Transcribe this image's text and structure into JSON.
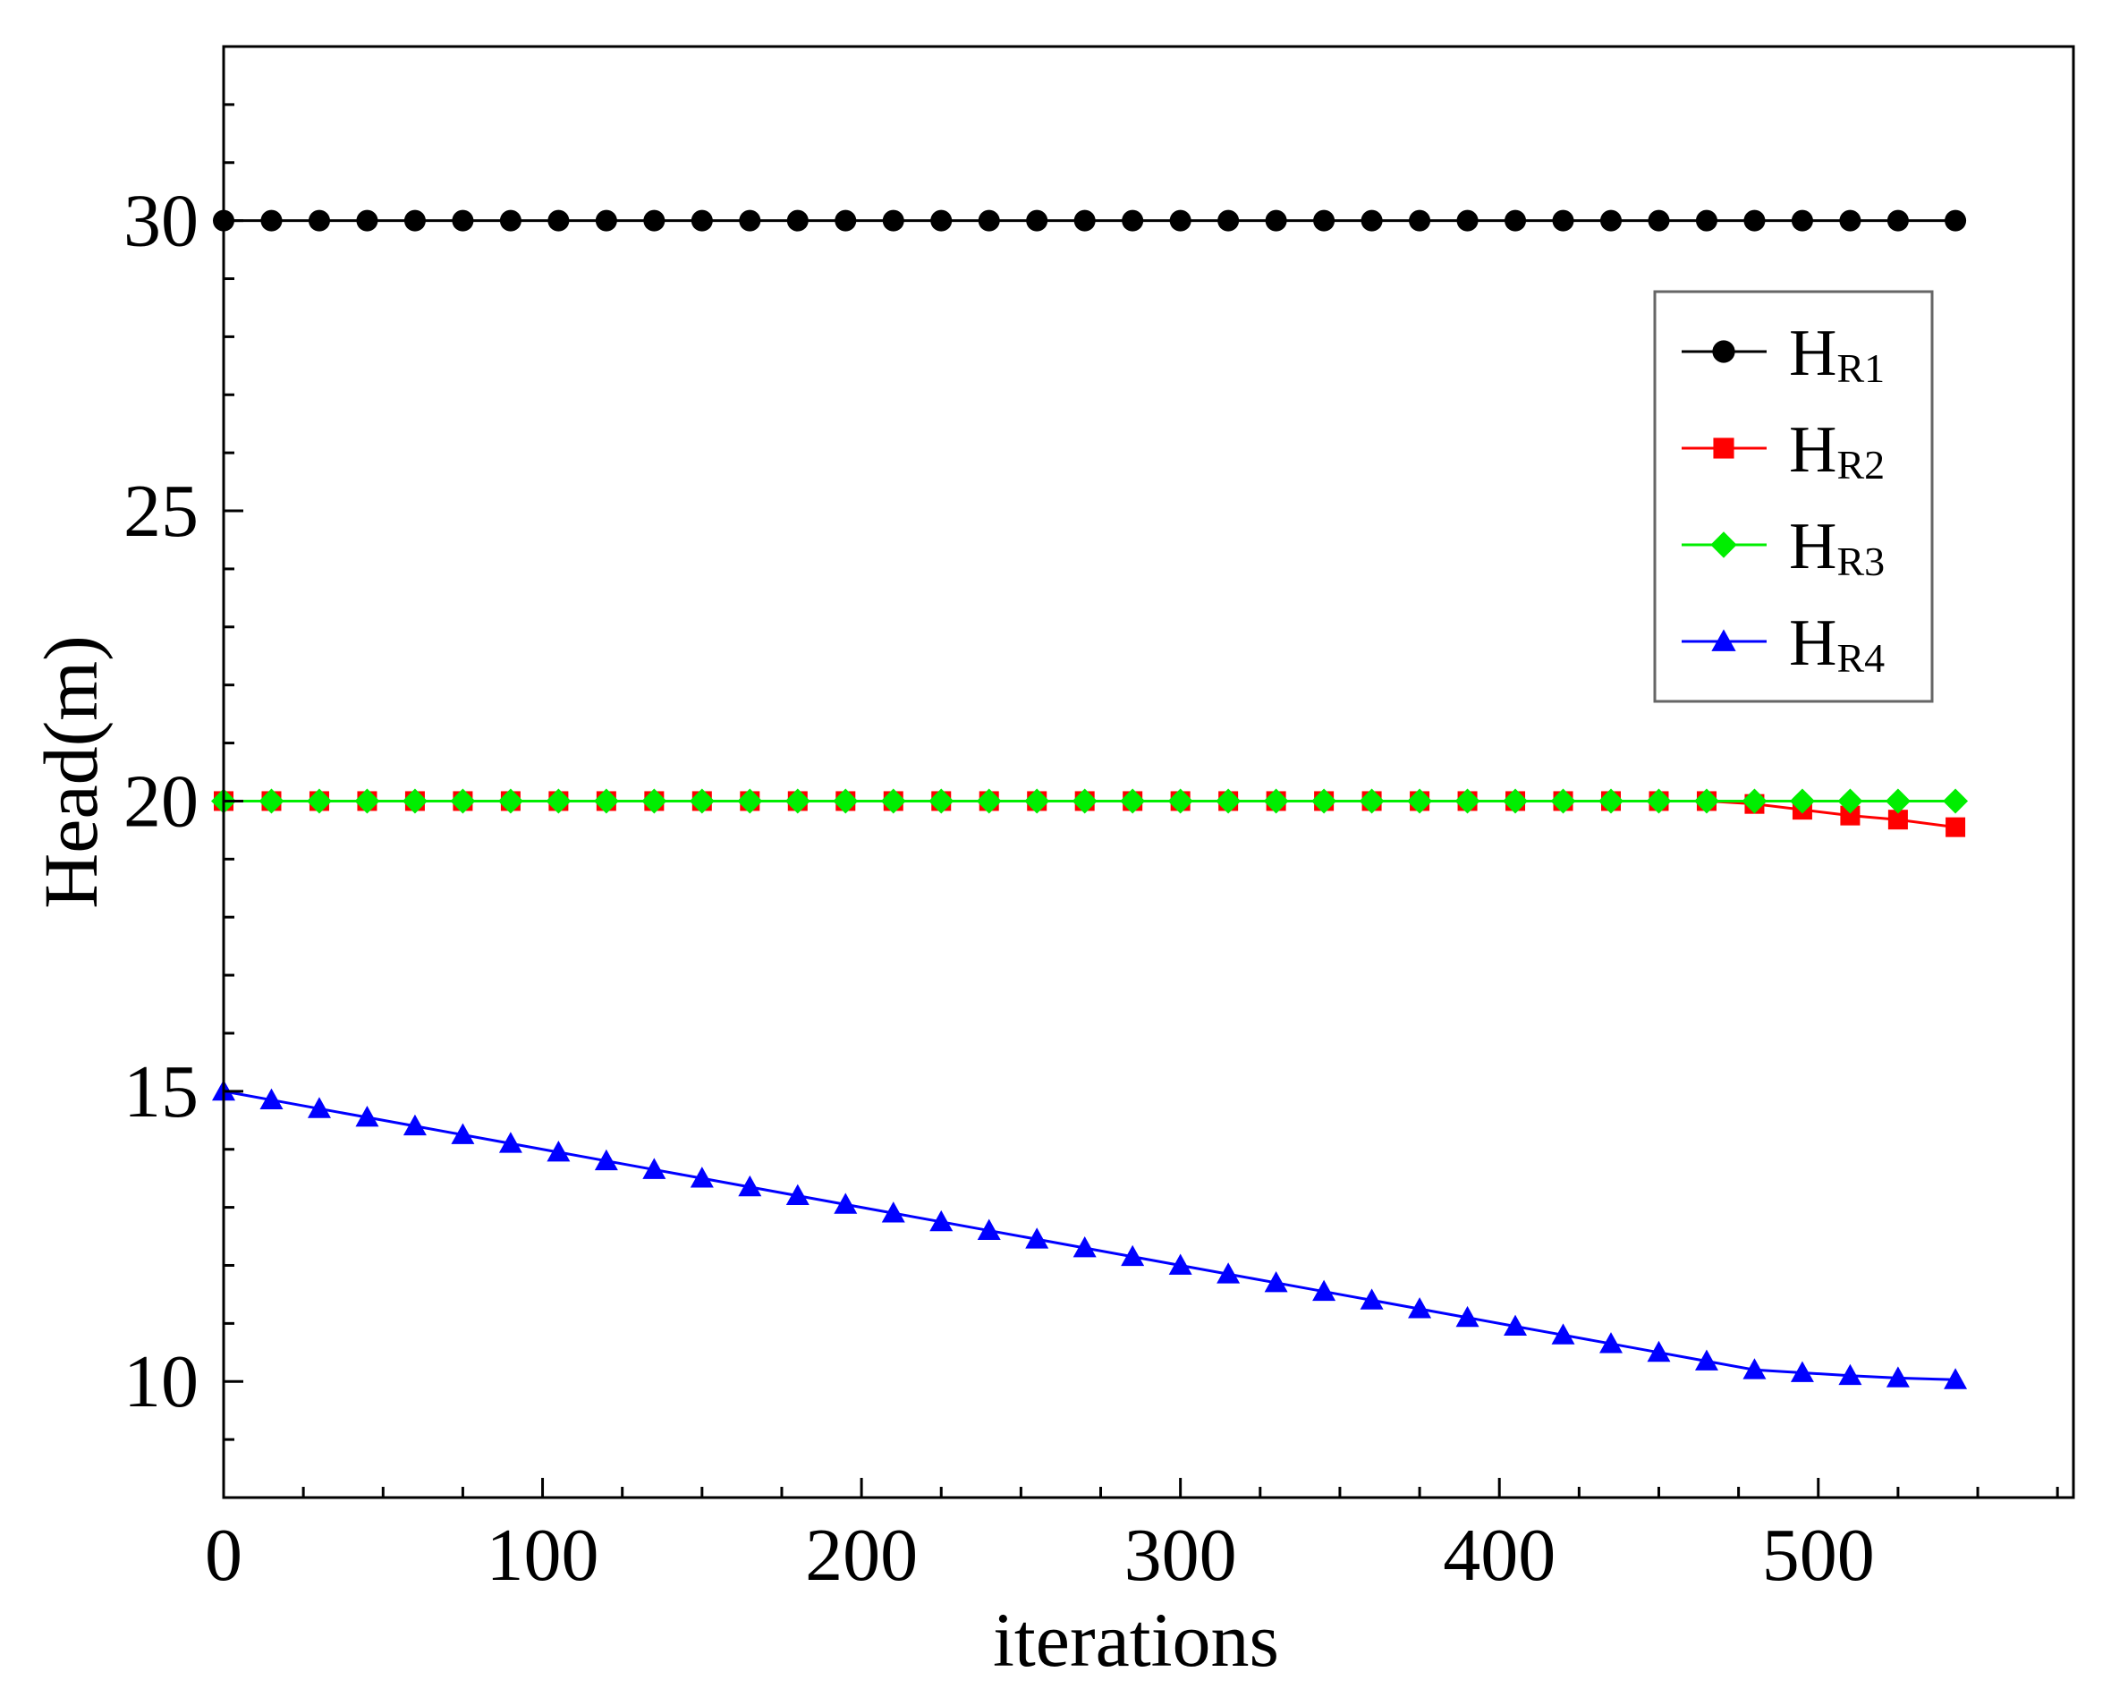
{
  "chart_data": {
    "type": "line",
    "title": "",
    "xlabel": "iterations",
    "ylabel": "Head(m)",
    "xlim": [
      0,
      580
    ],
    "ylim": [
      8,
      33
    ],
    "x_ticks": [
      0,
      100,
      200,
      300,
      400,
      500
    ],
    "x_tick_labels": [
      "0",
      "100",
      "200",
      "300",
      "400",
      "500"
    ],
    "y_ticks": [
      10,
      15,
      20,
      25,
      30
    ],
    "y_tick_labels": [
      "10",
      "15",
      "20",
      "25",
      "30"
    ],
    "grid": false,
    "legend": {
      "placement": "top-right"
    },
    "x": [
      0,
      15,
      30,
      45,
      60,
      75,
      90,
      105,
      120,
      135,
      150,
      165,
      180,
      195,
      210,
      225,
      240,
      255,
      270,
      285,
      300,
      315,
      330,
      345,
      360,
      375,
      390,
      405,
      420,
      435,
      450,
      465,
      480,
      495,
      510,
      525,
      543
    ],
    "series": [
      {
        "name": "H",
        "name_sub": "R1",
        "color": "#000000",
        "marker": "circle",
        "values": [
          30,
          30,
          30,
          30,
          30,
          30,
          30,
          30,
          30,
          30,
          30,
          30,
          30,
          30,
          30,
          30,
          30,
          30,
          30,
          30,
          30,
          30,
          30,
          30,
          30,
          30,
          30,
          30,
          30,
          30,
          30,
          30,
          30,
          30,
          30,
          30,
          30
        ]
      },
      {
        "name": "H",
        "name_sub": "R2",
        "color": "#ff0000",
        "marker": "square",
        "values": [
          20,
          20,
          20,
          20,
          20,
          20,
          20,
          20,
          20,
          20,
          20,
          20,
          20,
          20,
          20,
          20,
          20,
          20,
          20,
          20,
          20,
          20,
          20,
          20,
          20,
          20,
          20,
          20,
          20,
          20,
          20,
          20,
          19.95,
          19.85,
          19.75,
          19.68,
          19.55
        ]
      },
      {
        "name": "H",
        "name_sub": "R3",
        "color": "#00ee00",
        "marker": "diamond",
        "values": [
          20,
          20,
          20,
          20,
          20,
          20,
          20,
          20,
          20,
          20,
          20,
          20,
          20,
          20,
          20,
          20,
          20,
          20,
          20,
          20,
          20,
          20,
          20,
          20,
          20,
          20,
          20,
          20,
          20,
          20,
          20,
          20,
          20,
          20,
          20,
          20,
          20
        ]
      },
      {
        "name": "H",
        "name_sub": "R4",
        "color": "#0000ff",
        "marker": "triangle",
        "values": [
          15,
          14.85,
          14.7,
          14.55,
          14.4,
          14.25,
          14.1,
          13.95,
          13.8,
          13.65,
          13.5,
          13.35,
          13.2,
          13.05,
          12.9,
          12.75,
          12.6,
          12.45,
          12.3,
          12.15,
          12,
          11.85,
          11.7,
          11.55,
          11.4,
          11.25,
          11.1,
          10.95,
          10.8,
          10.65,
          10.5,
          10.35,
          10.2,
          10.15,
          10.1,
          10.06,
          10.03
        ]
      }
    ]
  }
}
